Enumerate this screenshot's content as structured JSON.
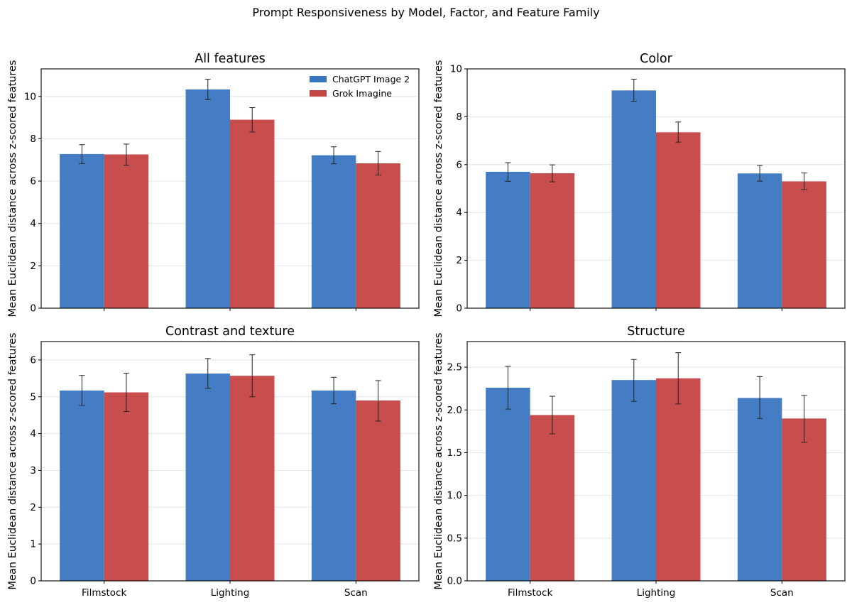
{
  "figure": {
    "title": "Prompt Responsiveness by Model, Factor, and Feature Family",
    "ylabel": "Mean Euclidean distance across z-scored features",
    "xlabel": "",
    "categories": [
      "Filmstock",
      "Lighting",
      "Scan"
    ],
    "series_names": [
      "ChatGPT Image 2",
      "Grok Imagine"
    ],
    "colors": [
      "#3a76c0",
      "#c54444"
    ],
    "legend_position": "upper right of first panel"
  },
  "chart_data": [
    {
      "type": "bar",
      "title": "All features",
      "categories": [
        "Filmstock",
        "Lighting",
        "Scan"
      ],
      "ylim": [
        0,
        11.3
      ],
      "yticks": [
        "0",
        "2",
        "4",
        "6",
        "8",
        "10"
      ],
      "yticks_values": [
        0,
        2,
        4,
        6,
        8,
        10
      ],
      "grid": true,
      "legend": "top-right",
      "series": [
        {
          "name": "ChatGPT Image 2",
          "values": [
            7.28,
            10.33,
            7.22
          ],
          "err_low": [
            6.83,
            9.85,
            6.82
          ],
          "err_high": [
            7.72,
            10.81,
            7.62
          ]
        },
        {
          "name": "Grok Imagine",
          "values": [
            7.26,
            8.9,
            6.84
          ],
          "err_low": [
            6.75,
            8.32,
            6.29
          ],
          "err_high": [
            7.75,
            9.47,
            7.4
          ]
        }
      ]
    },
    {
      "type": "bar",
      "title": "Color",
      "categories": [
        "Filmstock",
        "Lighting",
        "Scan"
      ],
      "ylim": [
        0,
        10.0
      ],
      "yticks": [
        "0",
        "2",
        "4",
        "6",
        "8",
        "10"
      ],
      "yticks_values": [
        0,
        2,
        4,
        6,
        8,
        10
      ],
      "grid": true,
      "series": [
        {
          "name": "ChatGPT Image 2",
          "values": [
            5.7,
            9.1,
            5.63
          ],
          "err_low": [
            5.3,
            8.65,
            5.31
          ],
          "err_high": [
            6.08,
            9.57,
            5.96
          ]
        },
        {
          "name": "Grok Imagine",
          "values": [
            5.64,
            7.35,
            5.3
          ],
          "err_low": [
            5.28,
            6.94,
            4.96
          ],
          "err_high": [
            5.99,
            7.78,
            5.65
          ]
        }
      ]
    },
    {
      "type": "bar",
      "title": "Contrast and texture",
      "categories": [
        "Filmstock",
        "Lighting",
        "Scan"
      ],
      "ylim": [
        0,
        6.5
      ],
      "yticks": [
        "0",
        "1",
        "2",
        "3",
        "4",
        "5",
        "6"
      ],
      "yticks_values": [
        0,
        1,
        2,
        3,
        4,
        5,
        6
      ],
      "grid": true,
      "series": [
        {
          "name": "ChatGPT Image 2",
          "values": [
            5.17,
            5.63,
            5.17
          ],
          "err_low": [
            4.77,
            5.23,
            4.81
          ],
          "err_high": [
            5.58,
            6.04,
            5.53
          ]
        },
        {
          "name": "Grok Imagine",
          "values": [
            5.12,
            5.57,
            4.9
          ],
          "err_low": [
            4.6,
            5.0,
            4.34
          ],
          "err_high": [
            5.64,
            6.14,
            5.44
          ]
        }
      ]
    },
    {
      "type": "bar",
      "title": "Structure",
      "categories": [
        "Filmstock",
        "Lighting",
        "Scan"
      ],
      "ylim": [
        0,
        2.8
      ],
      "yticks": [
        "0.0",
        "0.5",
        "1.0",
        "1.5",
        "2.0",
        "2.5"
      ],
      "yticks_values": [
        0,
        0.5,
        1.0,
        1.5,
        2.0,
        2.5
      ],
      "grid": true,
      "series": [
        {
          "name": "ChatGPT Image 2",
          "values": [
            2.26,
            2.35,
            2.14
          ],
          "err_low": [
            2.01,
            2.1,
            1.9
          ],
          "err_high": [
            2.51,
            2.59,
            2.39
          ]
        },
        {
          "name": "Grok Imagine",
          "values": [
            1.94,
            2.37,
            1.9
          ],
          "err_low": [
            1.72,
            2.07,
            1.62
          ],
          "err_high": [
            2.16,
            2.67,
            2.17
          ]
        }
      ]
    }
  ]
}
